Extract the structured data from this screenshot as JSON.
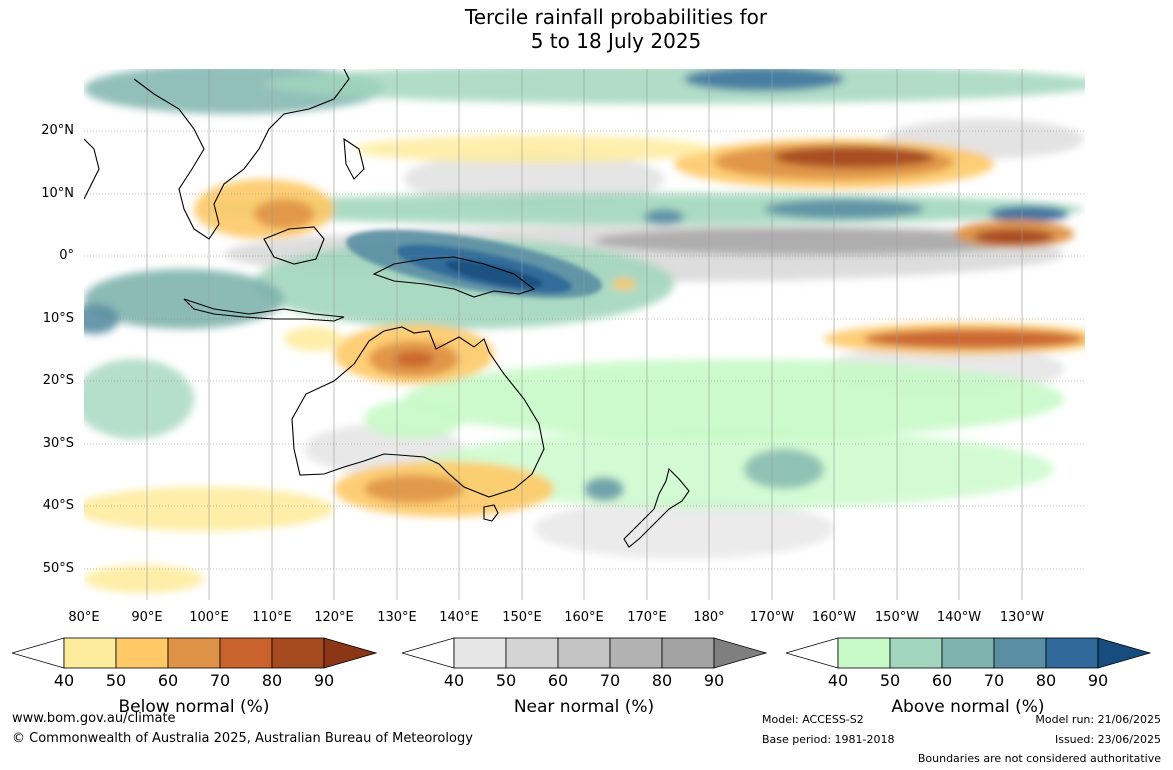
{
  "title": {
    "line1": "Tercile rainfall probabilities for",
    "line2": "5 to 18 July 2025"
  },
  "map": {
    "lat_labels": [
      "20°N",
      "10°N",
      "0°",
      "10°S",
      "20°S",
      "30°S",
      "40°S",
      "50°S"
    ],
    "lon_labels": [
      "80°E",
      "90°E",
      "100°E",
      "110°E",
      "120°E",
      "130°E",
      "140°E",
      "150°E",
      "160°E",
      "170°E",
      "180°",
      "170°W",
      "160°W",
      "150°W",
      "140°W",
      "130°W"
    ]
  },
  "colorbars": {
    "ticks": [
      "40",
      "50",
      "60",
      "70",
      "80",
      "90"
    ],
    "below": {
      "label": "Below normal (%)",
      "colors": [
        "#ffffff",
        "#feec9d",
        "#fec966",
        "#df9346",
        "#c9622d",
        "#a5491f",
        "#8c3517"
      ]
    },
    "near": {
      "label": "Near normal (%)",
      "colors": [
        "#ffffff",
        "#e6e6e6",
        "#d4d4d4",
        "#c3c3c3",
        "#b2b2b2",
        "#a2a2a2",
        "#7f7f7f"
      ]
    },
    "above": {
      "label": "Above normal (%)",
      "colors": [
        "#ffffff",
        "#c8fac8",
        "#a2d6be",
        "#7fb4ae",
        "#5a8ea3",
        "#30689a",
        "#164c7e"
      ]
    }
  },
  "footer": {
    "url": "www.bom.gov.au/climate",
    "copyright": "© Commonwealth of Australia 2025, Australian Bureau of Meteorology",
    "model": "Model: ACCESS-S2",
    "base_period": "Base period: 1981-2018",
    "model_run": "Model run: 21/06/2025",
    "issued": "Issued: 23/06/2025",
    "boundaries": "Boundaries are not considered authoritative"
  }
}
